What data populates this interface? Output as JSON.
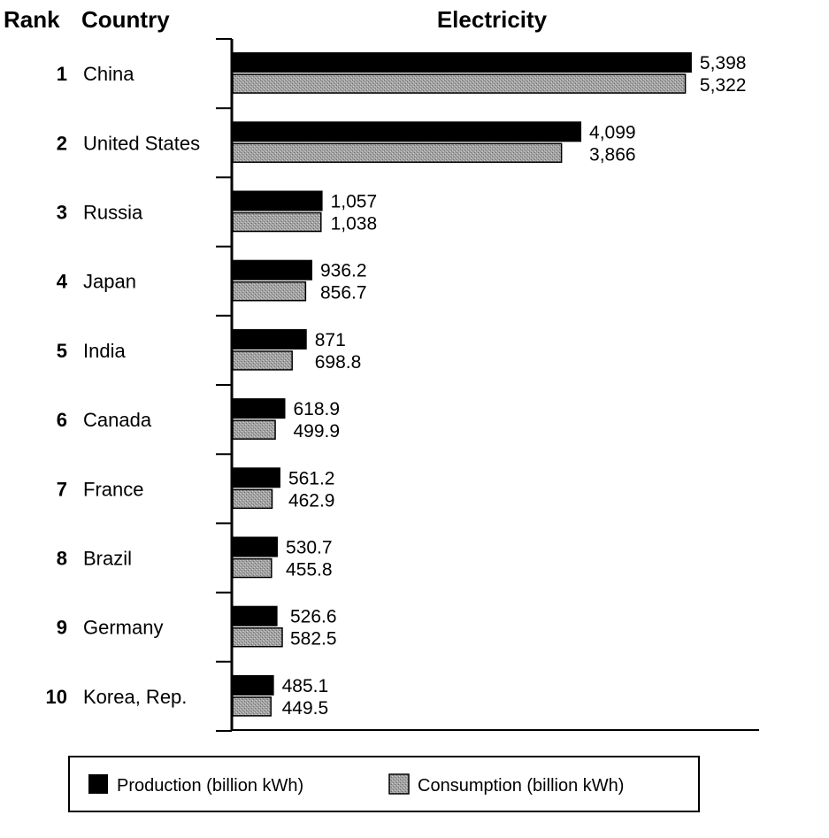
{
  "headers": {
    "rank": "Rank",
    "country": "Country",
    "title": "Electricity"
  },
  "legend": {
    "production": "Production (billion kWh)",
    "consumption": "Consumption (billion kWh)"
  },
  "colors": {
    "production": "#000000",
    "consumption": "#9a9a9a",
    "axis": "#000000"
  },
  "chart_data": {
    "type": "bar",
    "orientation": "horizontal",
    "title": "Electricity",
    "categories": [
      "China",
      "United States",
      "Russia",
      "Japan",
      "India",
      "Canada",
      "France",
      "Brazil",
      "Germany",
      "Korea, Rep."
    ],
    "ranks": [
      "1",
      "2",
      "3",
      "4",
      "5",
      "6",
      "7",
      "8",
      "9",
      "10"
    ],
    "series": [
      {
        "name": "Production (billion kWh)",
        "values": [
          5398,
          4099,
          1057,
          936.2,
          871,
          618.9,
          561.2,
          530.7,
          526.6,
          485.1
        ],
        "labels": [
          "5,398",
          "4,099",
          "1,057",
          "936.2",
          "871",
          "618.9",
          "561.2",
          "530.7",
          "526.6",
          "485.1"
        ]
      },
      {
        "name": "Consumption (billion kWh)",
        "values": [
          5322,
          3866,
          1038,
          856.7,
          698.8,
          499.9,
          462.9,
          455.8,
          582.5,
          449.5
        ],
        "labels": [
          "5,322",
          "3,866",
          "1,038",
          "856.7",
          "698.8",
          "499.9",
          "462.9",
          "455.8",
          "582.5",
          "449.5"
        ]
      }
    ],
    "xlim": [
      0,
      6200
    ],
    "grid": false,
    "legend_position": "bottom"
  }
}
